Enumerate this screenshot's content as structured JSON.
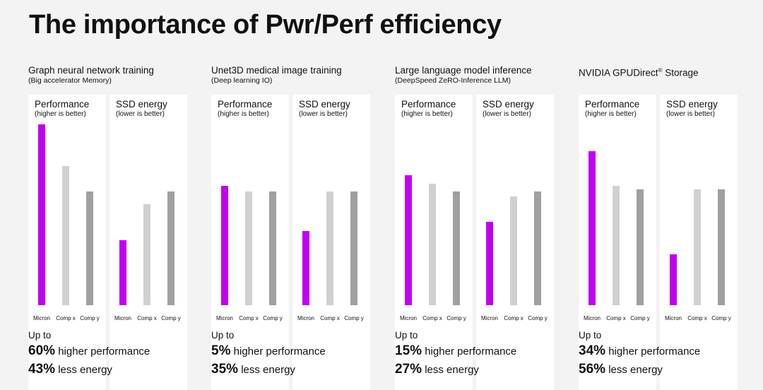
{
  "title": "The importance of Pwr/Perf efficiency",
  "colors": {
    "micron": "#c000f0",
    "comp_x": "#d0d0d0",
    "comp_y": "#a0a0a0",
    "background": "#f3f3f3",
    "panel": "#ffffff"
  },
  "groups": [
    {
      "title": "Graph neural network training",
      "subtitle": "(Big accelerator Memory)",
      "up_to": "Up to",
      "perf_pct": "60%",
      "perf_text": "higher performance",
      "energy_pct": "43%",
      "energy_text": "less energy"
    },
    {
      "title": "Unet3D medical image training",
      "subtitle": "(Deep learning IO)",
      "up_to": "Up to",
      "perf_pct": "5%",
      "perf_text": "higher performance",
      "energy_pct": "35%",
      "energy_text": "less energy"
    },
    {
      "title": "Large language model inference",
      "subtitle": "(DeepSpeed ZeRO-Inference LLM)",
      "up_to": "Up to",
      "perf_pct": "15%",
      "perf_text": "higher performance",
      "energy_pct": "27%",
      "energy_text": "less energy"
    },
    {
      "title": "NVIDIA GPUDirect",
      "title_sup": "®",
      "title_suffix": " Storage",
      "subtitle": "",
      "up_to": "Up to",
      "perf_pct": "34%",
      "perf_text": "higher performance",
      "energy_pct": "56%",
      "energy_text": "less energy"
    }
  ],
  "panel_labels": {
    "performance": "Performance",
    "performance_sub": "(higher is better)",
    "energy": "SSD energy",
    "energy_sub": "(lower is better)"
  },
  "chart_data": [
    {
      "type": "bar",
      "title": "Performance",
      "subtitle": "(higher is better)",
      "group": "Graph neural network training",
      "categories": [
        "Micron",
        "Comp x",
        "Comp y"
      ],
      "values": [
        1.0,
        0.77,
        0.63
      ],
      "ylim": [
        0,
        1
      ]
    },
    {
      "type": "bar",
      "title": "SSD energy",
      "subtitle": "(lower is better)",
      "group": "Graph neural network training",
      "categories": [
        "Micron",
        "Comp x",
        "Comp y"
      ],
      "values": [
        0.36,
        0.56,
        0.63
      ],
      "ylim": [
        0,
        1
      ]
    },
    {
      "type": "bar",
      "title": "Performance",
      "subtitle": "(higher is better)",
      "group": "Unet3D medical image training",
      "categories": [
        "Micron",
        "Comp x",
        "Comp y"
      ],
      "values": [
        0.66,
        0.63,
        0.63
      ],
      "ylim": [
        0,
        1
      ]
    },
    {
      "type": "bar",
      "title": "SSD energy",
      "subtitle": "(lower is better)",
      "group": "Unet3D medical image training",
      "categories": [
        "Micron",
        "Comp x",
        "Comp y"
      ],
      "values": [
        0.41,
        0.63,
        0.63
      ],
      "ylim": [
        0,
        1
      ]
    },
    {
      "type": "bar",
      "title": "Performance",
      "subtitle": "(higher is better)",
      "group": "Large language model inference",
      "categories": [
        "Micron",
        "Comp x",
        "Comp y"
      ],
      "values": [
        0.72,
        0.67,
        0.63
      ],
      "ylim": [
        0,
        1
      ]
    },
    {
      "type": "bar",
      "title": "SSD energy",
      "subtitle": "(lower is better)",
      "group": "Large language model inference",
      "categories": [
        "Micron",
        "Comp x",
        "Comp y"
      ],
      "values": [
        0.46,
        0.6,
        0.63
      ],
      "ylim": [
        0,
        1
      ]
    },
    {
      "type": "bar",
      "title": "Performance",
      "subtitle": "(higher is better)",
      "group": "NVIDIA GPUDirect® Storage",
      "categories": [
        "Micron",
        "Comp x",
        "Comp y"
      ],
      "values": [
        0.85,
        0.66,
        0.64
      ],
      "ylim": [
        0,
        1
      ]
    },
    {
      "type": "bar",
      "title": "SSD energy",
      "subtitle": "(lower is better)",
      "group": "NVIDIA GPUDirect® Storage",
      "categories": [
        "Micron",
        "Comp x",
        "Comp y"
      ],
      "values": [
        0.28,
        0.64,
        0.64
      ],
      "ylim": [
        0,
        1
      ]
    }
  ]
}
